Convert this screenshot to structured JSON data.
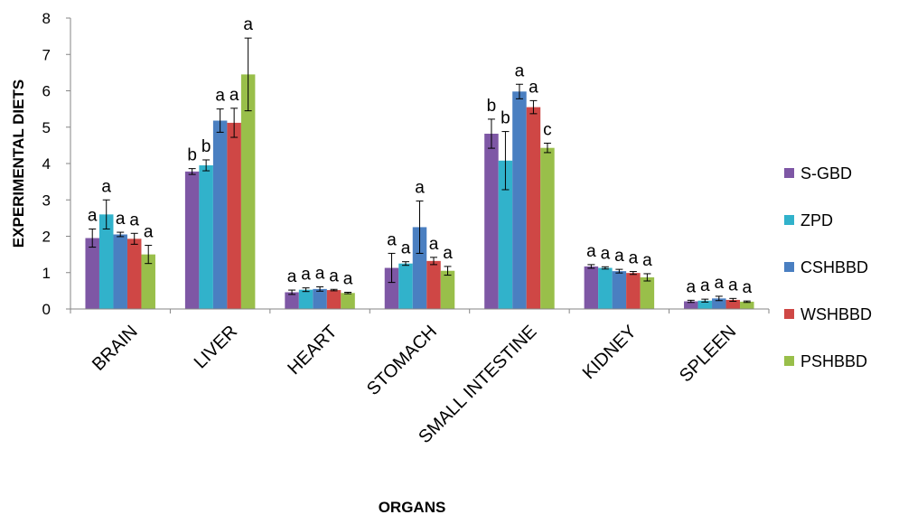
{
  "chart_data": {
    "type": "bar",
    "xlabel": "ORGANS",
    "ylabel": "EXPERIMENTAL DIETS",
    "ylim": [
      0,
      8
    ],
    "yticks": [
      "0",
      "1",
      "2",
      "3",
      "4",
      "5",
      "6",
      "7",
      "8"
    ],
    "grid": false,
    "legend_position": "right",
    "error_bars": true,
    "categories": [
      "BRAIN",
      "LIVER",
      "HEART",
      "STOMACH",
      "SMALL INTESTINE",
      "KIDNEY",
      "SPLEEN"
    ],
    "series": [
      {
        "name": "S-GBD",
        "color": "#7e57a5",
        "values": [
          1.95,
          3.78,
          0.46,
          1.13,
          4.82,
          1.17,
          0.21
        ],
        "errors": [
          0.25,
          0.08,
          0.06,
          0.4,
          0.4,
          0.05,
          0.03
        ],
        "labels": [
          "a",
          "b",
          "a",
          "a",
          "b",
          "a",
          "a"
        ]
      },
      {
        "name": "ZPD",
        "color": "#31b2cb",
        "values": [
          2.6,
          3.95,
          0.53,
          1.25,
          4.08,
          1.13,
          0.23
        ],
        "errors": [
          0.4,
          0.15,
          0.05,
          0.05,
          0.8,
          0.03,
          0.04
        ],
        "labels": [
          "a",
          "b",
          "a",
          "a",
          "b",
          "a",
          "a"
        ]
      },
      {
        "name": "CSHBBD",
        "color": "#4a7fc1",
        "values": [
          2.05,
          5.18,
          0.55,
          2.25,
          5.98,
          1.04,
          0.29
        ],
        "errors": [
          0.06,
          0.32,
          0.06,
          0.72,
          0.2,
          0.05,
          0.06
        ],
        "labels": [
          "a",
          "a",
          "a",
          "a",
          "a",
          "a",
          "a"
        ]
      },
      {
        "name": "WSHBBD",
        "color": "#cf4745",
        "values": [
          1.93,
          5.12,
          0.52,
          1.32,
          5.55,
          0.99,
          0.25
        ],
        "errors": [
          0.15,
          0.4,
          0.02,
          0.1,
          0.18,
          0.04,
          0.04
        ],
        "labels": [
          "a",
          "a",
          "a",
          "a",
          "a",
          "a",
          "a"
        ]
      },
      {
        "name": "PSHBBD",
        "color": "#99bf4a",
        "values": [
          1.5,
          6.45,
          0.44,
          1.05,
          4.43,
          0.87,
          0.2
        ],
        "errors": [
          0.25,
          1.0,
          0.02,
          0.12,
          0.13,
          0.1,
          0.02
        ],
        "labels": [
          "a",
          "a",
          "a",
          "a",
          "c",
          "a",
          "a"
        ]
      }
    ]
  }
}
